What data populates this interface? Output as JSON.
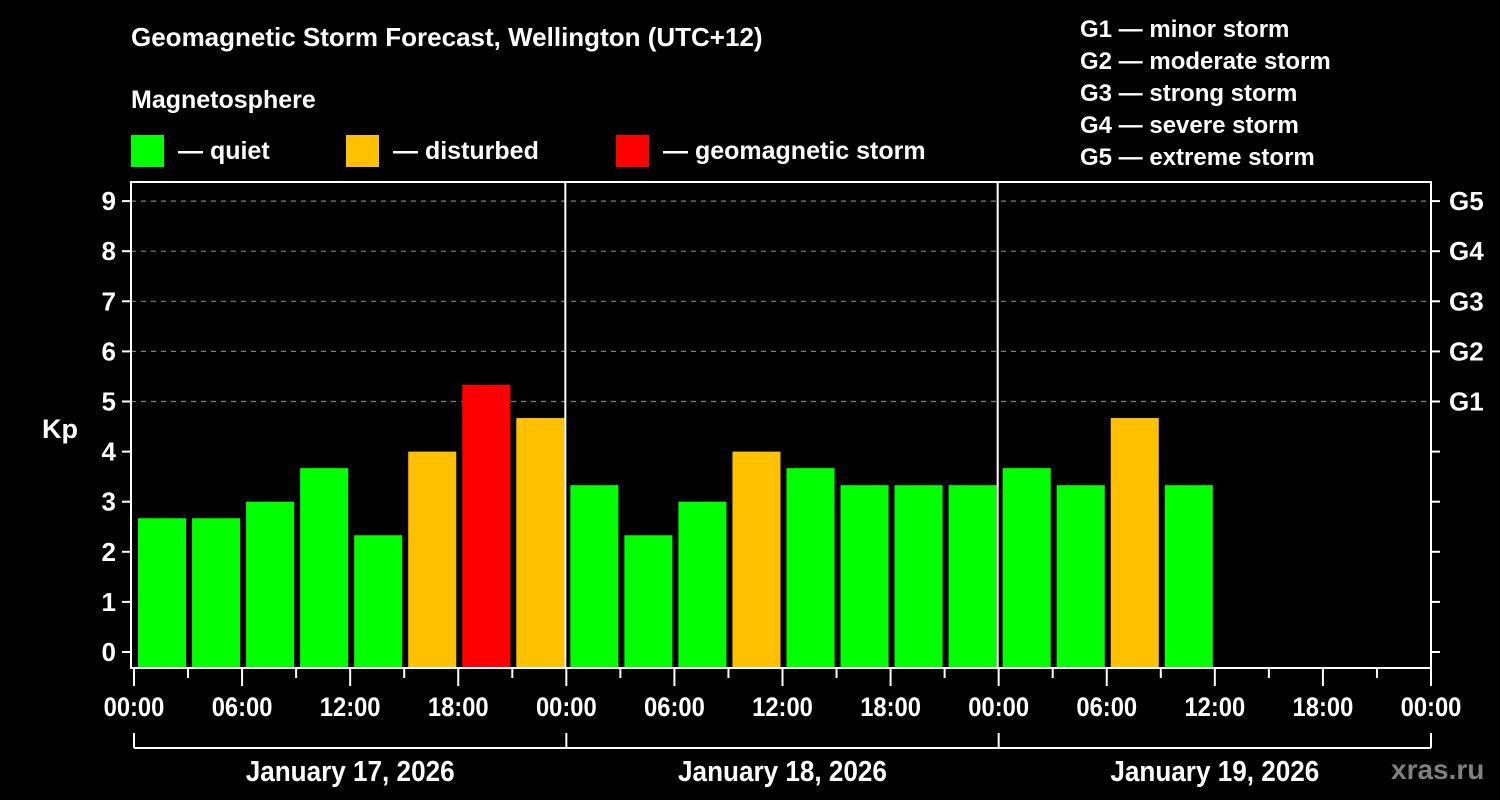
{
  "title": "Geomagnetic Storm Forecast, Wellington (UTC+12)",
  "legend": {
    "heading": "Magnetosphere",
    "items": [
      {
        "label": "— quiet",
        "color": "#00ff00"
      },
      {
        "label": "— disturbed",
        "color": "#ffc000"
      },
      {
        "label": "— geomagnetic storm",
        "color": "#ff0000"
      }
    ]
  },
  "g_scale": [
    {
      "label": "G1 — minor storm"
    },
    {
      "label": "G2 — moderate storm"
    },
    {
      "label": "G3 — strong storm"
    },
    {
      "label": "G4 — severe storm"
    },
    {
      "label": "G5 — extreme storm"
    }
  ],
  "watermark": "xras.ru",
  "chart_data": {
    "type": "bar",
    "title": "Geomagnetic Storm Forecast, Wellington (UTC+12)",
    "ylabel": "Kp",
    "ylim": [
      0,
      9
    ],
    "yticks": [
      0,
      1,
      2,
      3,
      4,
      5,
      6,
      7,
      8,
      9
    ],
    "right_axis_labels": [
      {
        "kp": 5,
        "label": "G1"
      },
      {
        "kp": 6,
        "label": "G2"
      },
      {
        "kp": 7,
        "label": "G3"
      },
      {
        "kp": 8,
        "label": "G4"
      },
      {
        "kp": 9,
        "label": "G5"
      }
    ],
    "grid": "dashed horizontal lines at Kp 5–9",
    "xtick_labels": [
      "00:00",
      "06:00",
      "12:00",
      "18:00",
      "00:00",
      "06:00",
      "12:00",
      "18:00",
      "00:00",
      "06:00",
      "12:00",
      "18:00",
      "00:00"
    ],
    "days": [
      "January 17, 2026",
      "January 18, 2026",
      "January 19, 2026"
    ],
    "interval_hours": 3,
    "colors": {
      "quiet": "#00ff00",
      "disturbed": "#ffc000",
      "storm": "#ff0000"
    },
    "categories": [
      "Jan 17 00:00",
      "Jan 17 03:00",
      "Jan 17 06:00",
      "Jan 17 09:00",
      "Jan 17 12:00",
      "Jan 17 15:00",
      "Jan 17 18:00",
      "Jan 17 21:00",
      "Jan 18 00:00",
      "Jan 18 03:00",
      "Jan 18 06:00",
      "Jan 18 09:00",
      "Jan 18 12:00",
      "Jan 18 15:00",
      "Jan 18 18:00",
      "Jan 18 21:00",
      "Jan 19 00:00",
      "Jan 19 03:00",
      "Jan 19 06:00",
      "Jan 19 09:00"
    ],
    "values": [
      2.67,
      2.67,
      3.0,
      3.67,
      2.33,
      4.0,
      5.33,
      4.67,
      3.33,
      2.33,
      3.0,
      4.0,
      3.67,
      3.33,
      3.33,
      3.33,
      3.67,
      3.33,
      4.67,
      3.33
    ],
    "status": [
      "quiet",
      "quiet",
      "quiet",
      "quiet",
      "quiet",
      "disturbed",
      "storm",
      "disturbed",
      "quiet",
      "quiet",
      "quiet",
      "disturbed",
      "quiet",
      "quiet",
      "quiet",
      "quiet",
      "quiet",
      "quiet",
      "disturbed",
      "quiet"
    ]
  }
}
